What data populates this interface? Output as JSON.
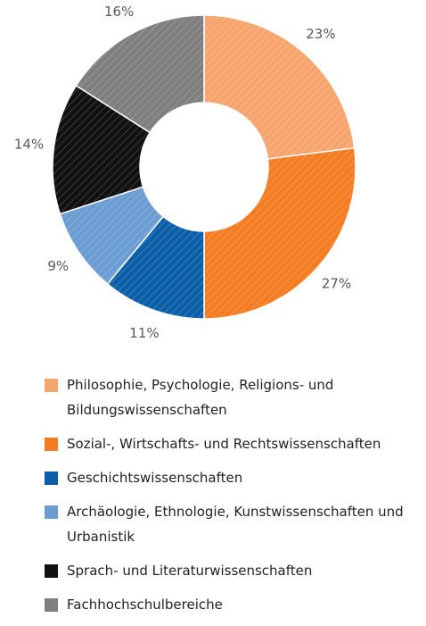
{
  "chart_data": {
    "type": "donut",
    "categories": [
      "Philosophie, Psychologie, Religions- und Bildungswissenschaften",
      "Sozial-, Wirtschafts- und Rechtswissenschaften",
      "Geschichtswissenschaften",
      "Archäologie, Ethnologie, Kunstwissenschaften und Urbanistik",
      "Sprach- und Literaturwissenschaften",
      "Fachhochschulbereiche"
    ],
    "values": [
      23,
      27,
      11,
      9,
      14,
      16
    ],
    "value_labels": [
      "23%",
      "27%",
      "11%",
      "9%",
      "14%",
      "16%"
    ],
    "colors": [
      "#F8A46E",
      "#F47C22",
      "#0B5FA9",
      "#6B9DD3",
      "#111111",
      "#7F7F7F"
    ]
  }
}
